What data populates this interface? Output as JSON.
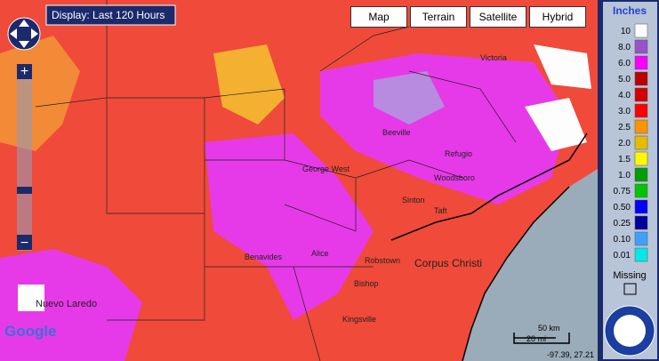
{
  "display": "Display: Last 120 Hours",
  "map_types": [
    "Map",
    "Terrain",
    "Satellite",
    "Hybrid"
  ],
  "legend": {
    "title": "Inches",
    "items": [
      {
        "label": "10",
        "color": "#fdfdfd"
      },
      {
        "label": "8.0",
        "color": "#9854c6"
      },
      {
        "label": "6.0",
        "color": "#f800fd"
      },
      {
        "label": "5.0",
        "color": "#bc0000"
      },
      {
        "label": "4.0",
        "color": "#d40000"
      },
      {
        "label": "3.0",
        "color": "#fd0000"
      },
      {
        "label": "2.5",
        "color": "#fd9500"
      },
      {
        "label": "2.0",
        "color": "#e5bc00"
      },
      {
        "label": "1.5",
        "color": "#fdf802"
      },
      {
        "label": "1.0",
        "color": "#029d00"
      },
      {
        "label": "0.75",
        "color": "#01c501"
      },
      {
        "label": "0.50",
        "color": "#0300f4"
      },
      {
        "label": "0.25",
        "color": "#0000a0"
      },
      {
        "label": "0.10",
        "color": "#3fa0ff"
      },
      {
        "label": "0.01",
        "color": "#04e9e7"
      }
    ],
    "missing": "Missing"
  },
  "places": [
    "Victoria",
    "Beeville",
    "George West",
    "Refugio",
    "Sinton",
    "Corpus Christi",
    "Alice",
    "Kingsville",
    "Nuevo Laredo",
    "Benavides",
    "Robstown",
    "Bishop",
    "Taft",
    "Woodsboro"
  ],
  "scale": {
    "km": "50 km",
    "mi": "20 mi"
  },
  "coordinates": "-97.39, 27.21",
  "attribution": "Google"
}
